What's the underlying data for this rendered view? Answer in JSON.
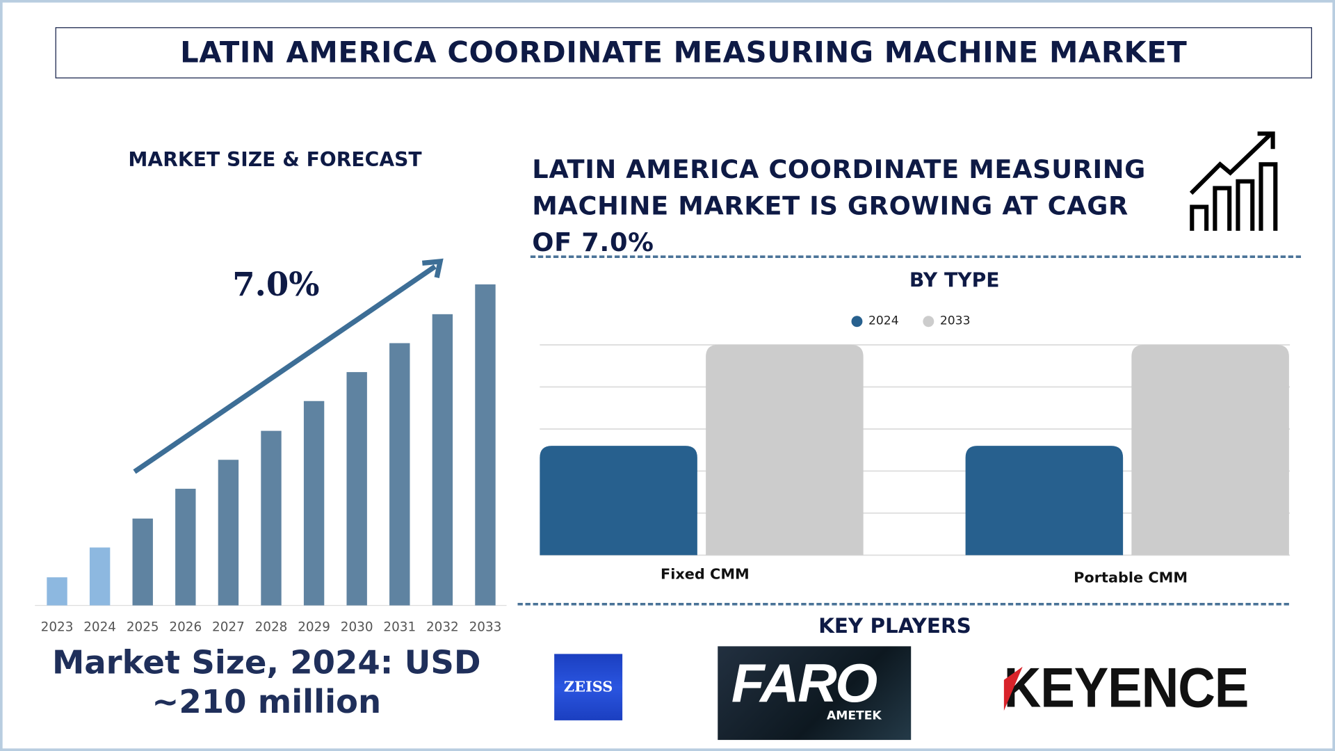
{
  "title": "LATIN AMERICA COORDINATE MEASURING MACHINE MARKET",
  "market_size_section": {
    "title": "MARKET SIZE & FORECAST",
    "cagr_label": "7.0%",
    "market_size_text_line1": "Market Size, 2024: USD",
    "market_size_text_line2": "~210 million"
  },
  "headline": {
    "line1": "LATIN AMERICA COORDINATE MEASURING",
    "line2": "MACHINE MARKET IS GROWING AT CAGR",
    "line3": "OF 7.0%",
    "icon": "growth-chart-icon"
  },
  "by_type": {
    "title": "BY TYPE"
  },
  "key_players": {
    "title": "KEY PLAYERS",
    "logos": [
      "ZEISS",
      "FARO",
      "AMETEK",
      "KEYENCE"
    ]
  },
  "colors": {
    "navy": "#0e1a45",
    "bar_2023_2024": "#8db8e0",
    "bar_forecast": "#5f83a1",
    "series_2024": "#27608e",
    "series_2033": "#cccccc",
    "arrow": "#3d6e96"
  },
  "chart_data": [
    {
      "type": "bar",
      "title": "",
      "categories": [
        "2023",
        "2024",
        "2025",
        "2026",
        "2027",
        "2028",
        "2029",
        "2030",
        "2031",
        "2032",
        "2033"
      ],
      "values": [
        33,
        68,
        102,
        137,
        171,
        205,
        240,
        274,
        308,
        342,
        377
      ],
      "ylim": [
        0,
        380
      ],
      "grid": false,
      "annotation": "7.0%"
    },
    {
      "type": "bar",
      "title": "BY TYPE",
      "categories": [
        "Fixed CMM",
        "Portable CMM"
      ],
      "series": [
        {
          "name": "2024",
          "values": [
            2.6,
            2.6
          ]
        },
        {
          "name": "2033",
          "values": [
            5.0,
            5.0
          ]
        }
      ],
      "ylim": [
        0,
        5
      ],
      "grid": true,
      "legend": "top-center"
    }
  ]
}
